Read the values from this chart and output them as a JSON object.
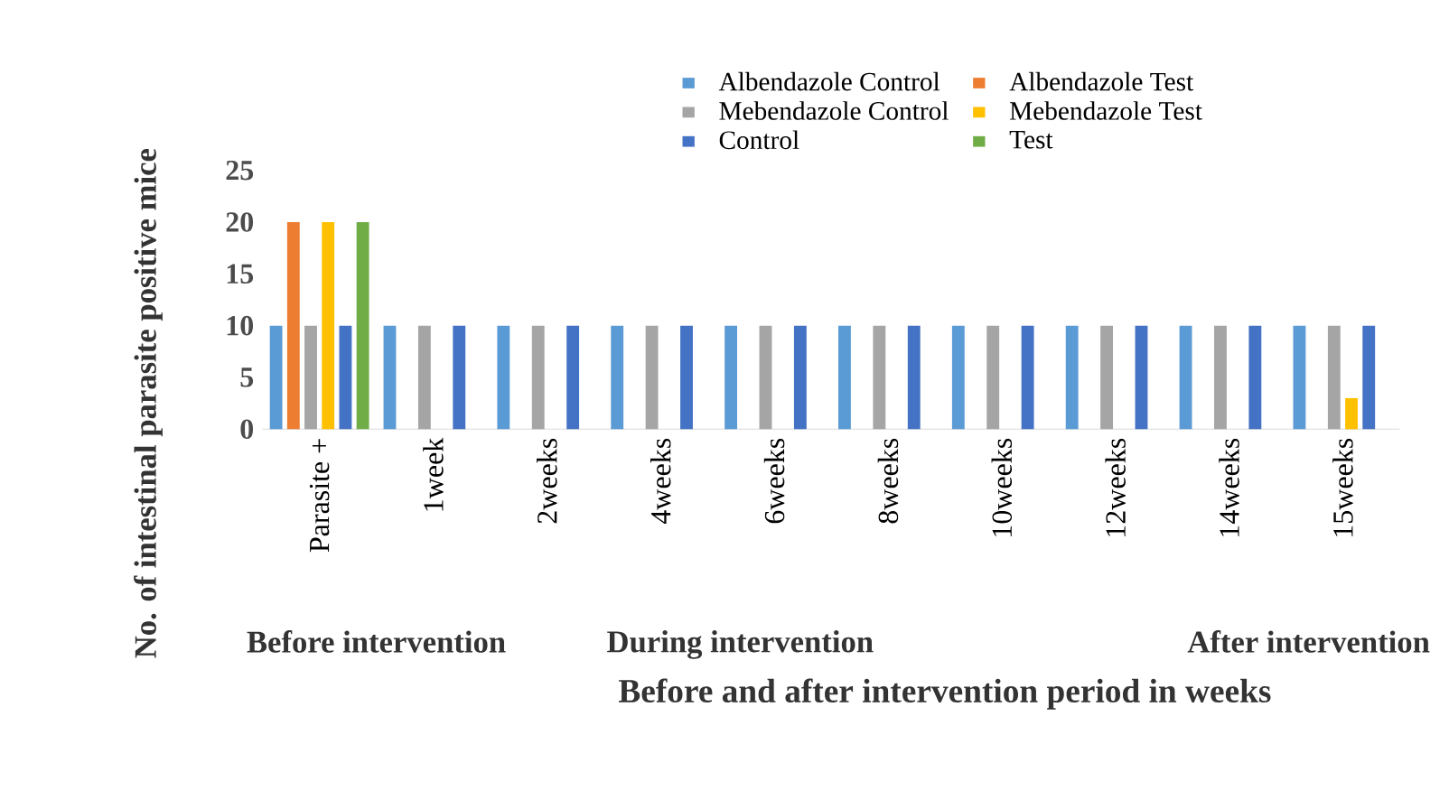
{
  "chart_data": {
    "type": "bar",
    "xlabel": "Before and after intervention period in weeks",
    "ylabel": "No. of intestinal parasite positive mice",
    "categories": [
      "Parasite +",
      "1week",
      "2weeks",
      "4weeks",
      "6weeks",
      "8weeks",
      "10weeks",
      "12weeks",
      "14weeks",
      "15weeks"
    ],
    "series": [
      {
        "name": "Albendazole Control",
        "color": "#5b9bd5",
        "values": [
          10,
          10,
          10,
          10,
          10,
          10,
          10,
          10,
          10,
          10
        ]
      },
      {
        "name": "Albendazole Test",
        "color": "#ed7d31",
        "values": [
          20,
          0,
          0,
          0,
          0,
          0,
          0,
          0,
          0,
          0
        ]
      },
      {
        "name": "Mebendazole Control",
        "color": "#a5a5a5",
        "values": [
          10,
          10,
          10,
          10,
          10,
          10,
          10,
          10,
          10,
          10
        ]
      },
      {
        "name": "Mebendazole Test",
        "color": "#ffc000",
        "values": [
          20,
          0,
          0,
          0,
          0,
          0,
          0,
          0,
          0,
          3
        ]
      },
      {
        "name": "Control",
        "color": "#4472c4",
        "values": [
          10,
          10,
          10,
          10,
          10,
          10,
          10,
          10,
          10,
          10
        ]
      },
      {
        "name": "Test",
        "color": "#70ad47",
        "values": [
          20,
          0,
          0,
          0,
          0,
          0,
          0,
          0,
          0,
          0
        ]
      }
    ],
    "annotations": [
      "Before intervention",
      "During intervention",
      "After intervention"
    ],
    "ylim": [
      0,
      25
    ],
    "yticks": [
      0,
      5,
      10,
      15,
      20,
      25
    ],
    "grid": false,
    "legend": "top"
  }
}
